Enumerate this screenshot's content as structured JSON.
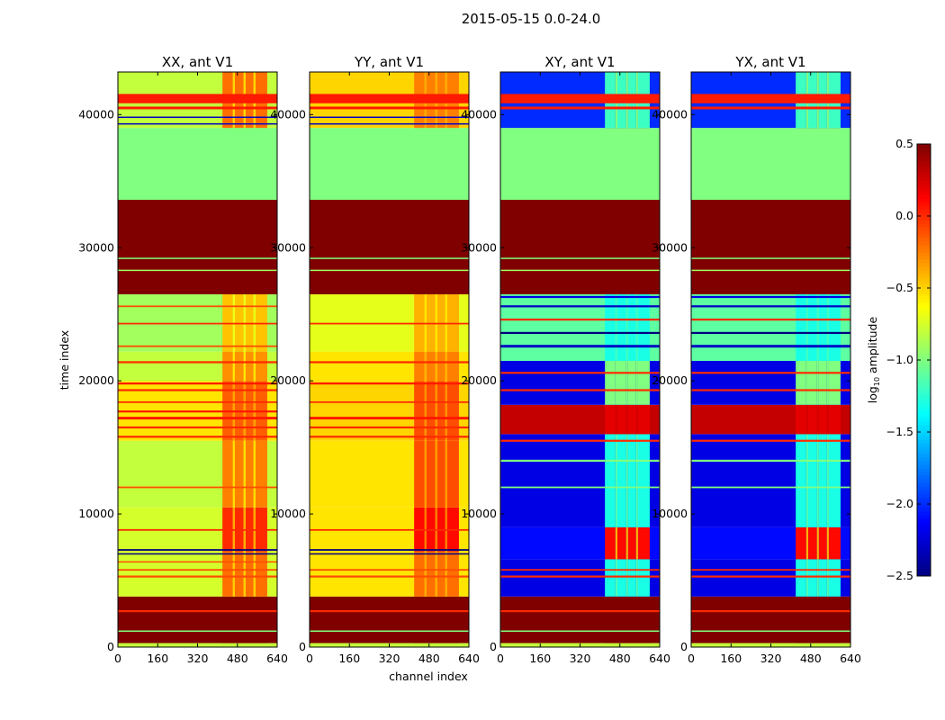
{
  "chart_data": {
    "type": "heatmap",
    "title": "2015-05-15 0.0-24.0",
    "xlabel": "channel index",
    "ylabel": "time index",
    "xlim": [
      0,
      640
    ],
    "ylim": [
      0,
      43200
    ],
    "xticks": [
      "0",
      "160",
      "320",
      "480",
      "640"
    ],
    "yticks": [
      "0",
      "10000",
      "20000",
      "30000",
      "40000"
    ],
    "colorbar": {
      "label": "log10 amplitude",
      "label_main": "log",
      "label_sub": "10",
      "label_rest": " amplitude",
      "range": [
        -2.5,
        0.5
      ],
      "ticks": [
        "0.5",
        "0.0",
        "−0.5",
        "−1.0",
        "−1.5",
        "−2.0",
        "−2.5"
      ],
      "colormap": "jet"
    },
    "panels": [
      {
        "title": "XX, ant V1",
        "bands": [
          [
            0,
            300,
            -0.8,
            -0.8
          ],
          [
            300,
            3800,
            0.5,
            0.5
          ],
          [
            3800,
            7200,
            -0.75,
            -0.2
          ],
          [
            7200,
            10500,
            -0.75,
            0.0
          ],
          [
            10500,
            15500,
            -0.8,
            -0.25
          ],
          [
            15500,
            20000,
            -0.55,
            -0.15
          ],
          [
            20000,
            22200,
            -0.8,
            -0.3
          ],
          [
            22200,
            26500,
            -0.9,
            -0.45
          ],
          [
            26500,
            33600,
            0.5,
            0.5
          ],
          [
            33600,
            39000,
            -1.0,
            -1.0
          ],
          [
            39000,
            43200,
            -0.8,
            -0.2
          ]
        ],
        "lines": [
          [
            41200,
            700,
            0.05
          ],
          [
            40500,
            200,
            0.05
          ],
          [
            39800,
            100,
            -2.3
          ],
          [
            39300,
            100,
            -2.3
          ],
          [
            29200,
            100,
            -1.0
          ],
          [
            28300,
            100,
            -0.9
          ],
          [
            2700,
            150,
            0.0
          ],
          [
            1200,
            100,
            -1.0
          ],
          [
            7300,
            120,
            -2.5
          ],
          [
            7000,
            100,
            -2.5
          ],
          [
            5300,
            150,
            -0.1
          ],
          [
            5800,
            120,
            -0.1
          ],
          [
            6400,
            100,
            -0.1
          ],
          [
            8800,
            120,
            0.0
          ],
          [
            12000,
            120,
            -0.1
          ],
          [
            15800,
            150,
            0.0
          ],
          [
            16500,
            150,
            0.0
          ],
          [
            17200,
            200,
            0.05
          ],
          [
            17700,
            150,
            0.05
          ],
          [
            18400,
            120,
            0.0
          ],
          [
            19300,
            150,
            0.0
          ],
          [
            19800,
            150,
            0.05
          ],
          [
            21400,
            150,
            0.0
          ],
          [
            22600,
            120,
            -0.1
          ],
          [
            24300,
            120,
            0.0
          ],
          [
            25600,
            120,
            -0.1
          ]
        ]
      },
      {
        "title": "YY, ant V1",
        "bands": [
          [
            0,
            300,
            -0.8,
            -0.8
          ],
          [
            300,
            3800,
            0.5,
            0.5
          ],
          [
            3800,
            7200,
            -0.55,
            -0.2
          ],
          [
            7200,
            10500,
            -0.55,
            0.1
          ],
          [
            10500,
            15500,
            -0.55,
            -0.1
          ],
          [
            15500,
            20000,
            -0.5,
            -0.1
          ],
          [
            20000,
            22200,
            -0.55,
            -0.25
          ],
          [
            22200,
            26500,
            -0.7,
            -0.4
          ],
          [
            26500,
            33600,
            0.5,
            0.5
          ],
          [
            33600,
            39000,
            -1.0,
            -1.0
          ],
          [
            39000,
            43200,
            -0.5,
            -0.25
          ]
        ],
        "lines": [
          [
            41200,
            700,
            0.05
          ],
          [
            40500,
            200,
            0.05
          ],
          [
            39800,
            100,
            -2.3
          ],
          [
            39300,
            100,
            -2.3
          ],
          [
            29200,
            100,
            -1.0
          ],
          [
            28300,
            100,
            -0.9
          ],
          [
            2700,
            150,
            0.0
          ],
          [
            1200,
            100,
            -1.0
          ],
          [
            7300,
            120,
            -2.5
          ],
          [
            7000,
            100,
            -2.5
          ],
          [
            5300,
            150,
            -0.1
          ],
          [
            5800,
            120,
            -0.1
          ],
          [
            8800,
            120,
            0.0
          ],
          [
            15800,
            150,
            0.0
          ],
          [
            16500,
            150,
            0.0
          ],
          [
            17200,
            200,
            0.05
          ],
          [
            18400,
            120,
            0.0
          ],
          [
            19800,
            150,
            0.05
          ],
          [
            21400,
            150,
            0.0
          ],
          [
            24300,
            120,
            0.0
          ]
        ]
      },
      {
        "title": "XY, ant V1",
        "bands": [
          [
            0,
            300,
            -0.8,
            -0.8
          ],
          [
            300,
            3800,
            0.5,
            0.5
          ],
          [
            3800,
            6600,
            -2.2,
            -1.3
          ],
          [
            6600,
            9000,
            -2.1,
            0.1
          ],
          [
            9000,
            16000,
            -2.2,
            -1.3
          ],
          [
            16000,
            18200,
            0.3,
            0.2
          ],
          [
            18200,
            21500,
            -2.2,
            -1.0
          ],
          [
            21500,
            26500,
            -1.1,
            -1.3
          ],
          [
            26500,
            33600,
            0.5,
            0.5
          ],
          [
            33600,
            39000,
            -1.0,
            -1.0
          ],
          [
            39000,
            43200,
            -2.0,
            -1.2
          ]
        ],
        "lines": [
          [
            41200,
            700,
            0.05
          ],
          [
            40500,
            200,
            0.05
          ],
          [
            29200,
            100,
            -1.0
          ],
          [
            28300,
            100,
            -0.9
          ],
          [
            2700,
            150,
            0.0
          ],
          [
            1200,
            100,
            -1.0
          ],
          [
            5300,
            150,
            0.0
          ],
          [
            5800,
            120,
            0.0
          ],
          [
            12000,
            120,
            -1.0
          ],
          [
            14000,
            150,
            -1.0
          ],
          [
            15500,
            150,
            0.0
          ],
          [
            19300,
            150,
            0.0
          ],
          [
            20600,
            150,
            0.0
          ],
          [
            22600,
            200,
            -2.3
          ],
          [
            23600,
            150,
            -2.5
          ],
          [
            24600,
            150,
            0.0
          ],
          [
            25600,
            150,
            -2.3
          ],
          [
            26300,
            150,
            -2.2
          ]
        ]
      },
      {
        "title": "YX, ant V1",
        "bands": [
          [
            0,
            300,
            -0.8,
            -0.8
          ],
          [
            300,
            3800,
            0.5,
            0.5
          ],
          [
            3800,
            6600,
            -2.2,
            -1.3
          ],
          [
            6600,
            9000,
            -2.1,
            0.1
          ],
          [
            9000,
            16000,
            -2.2,
            -1.3
          ],
          [
            16000,
            18200,
            0.3,
            0.2
          ],
          [
            18200,
            21500,
            -2.2,
            -1.0
          ],
          [
            21500,
            26500,
            -1.1,
            -1.3
          ],
          [
            26500,
            33600,
            0.5,
            0.5
          ],
          [
            33600,
            39000,
            -1.0,
            -1.0
          ],
          [
            39000,
            43200,
            -2.0,
            -1.2
          ]
        ],
        "lines": [
          [
            41200,
            700,
            0.05
          ],
          [
            40500,
            200,
            0.05
          ],
          [
            29200,
            100,
            -1.0
          ],
          [
            28300,
            100,
            -0.9
          ],
          [
            2700,
            150,
            0.0
          ],
          [
            1200,
            100,
            -1.0
          ],
          [
            5300,
            150,
            0.0
          ],
          [
            5800,
            120,
            0.0
          ],
          [
            12000,
            120,
            -1.0
          ],
          [
            14000,
            150,
            -1.0
          ],
          [
            15500,
            150,
            0.0
          ],
          [
            19300,
            150,
            0.0
          ],
          [
            20600,
            150,
            0.0
          ],
          [
            22600,
            200,
            -2.3
          ],
          [
            23600,
            150,
            -2.5
          ],
          [
            24600,
            150,
            0.0
          ],
          [
            25600,
            150,
            -2.3
          ],
          [
            26300,
            150,
            -2.2
          ]
        ]
      }
    ]
  }
}
